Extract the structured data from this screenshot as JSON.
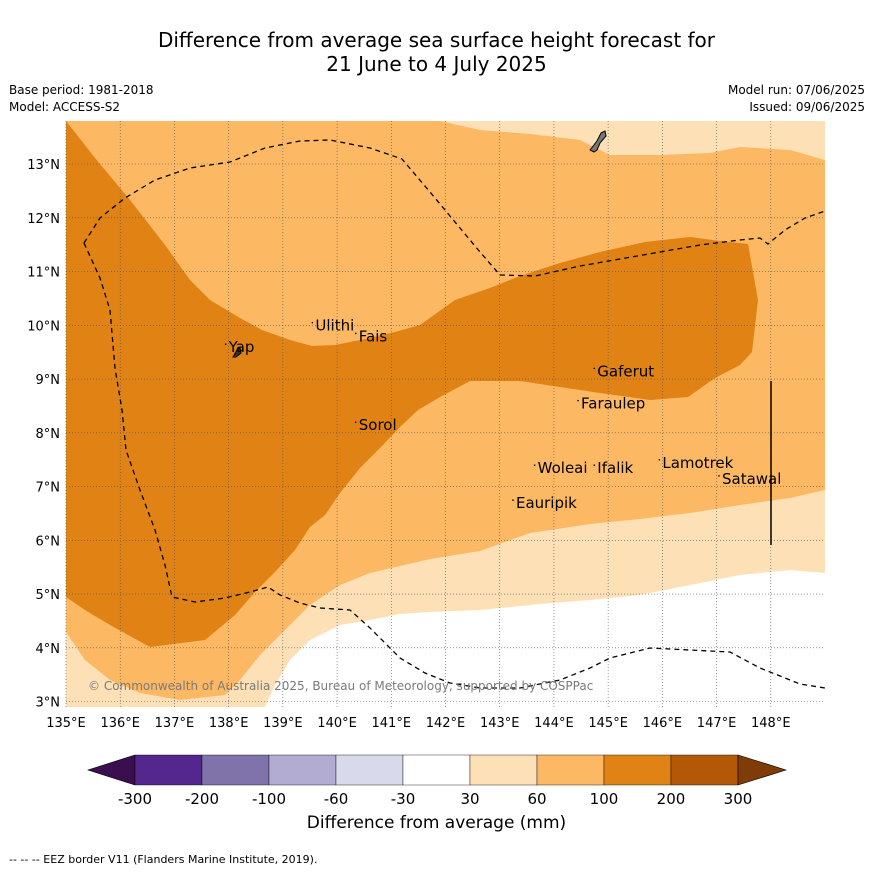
{
  "title": {
    "line1": "Difference from average sea surface height forecast for",
    "line2": "21 June to 4 July 2025"
  },
  "meta": {
    "base_period": "Base period: 1981-2018",
    "model": "Model: ACCESS-S2",
    "model_run": "Model run: 07/06/2025",
    "issued": "Issued: 09/06/2025"
  },
  "axes": {
    "x_ticks": [
      "135°E",
      "136°E",
      "137°E",
      "138°E",
      "139°E",
      "140°E",
      "141°E",
      "142°E",
      "143°E",
      "144°E",
      "145°E",
      "146°E",
      "147°E",
      "148°E"
    ],
    "y_ticks": [
      "3°N",
      "4°N",
      "5°N",
      "6°N",
      "7°N",
      "8°N",
      "9°N",
      "10°N",
      "11°N",
      "12°N",
      "13°N"
    ],
    "lon_range": [
      135,
      149
    ],
    "lat_range": [
      2.9,
      13.8
    ]
  },
  "places": [
    {
      "name": "Yap",
      "lon": 138.0,
      "lat": 9.5
    },
    {
      "name": "Ulithi",
      "lon": 139.6,
      "lat": 9.9
    },
    {
      "name": "Fais",
      "lon": 140.4,
      "lat": 9.7
    },
    {
      "name": "Sorol",
      "lon": 140.4,
      "lat": 8.05
    },
    {
      "name": "Gaferut",
      "lon": 144.8,
      "lat": 9.05
    },
    {
      "name": "Faraulep",
      "lon": 144.5,
      "lat": 8.45
    },
    {
      "name": "Woleai",
      "lon": 143.7,
      "lat": 7.25
    },
    {
      "name": "Ifalik",
      "lon": 144.8,
      "lat": 7.25
    },
    {
      "name": "Lamotrek",
      "lon": 146.0,
      "lat": 7.35
    },
    {
      "name": "Satawal",
      "lon": 147.1,
      "lat": 7.05
    },
    {
      "name": "Eauripik",
      "lon": 143.3,
      "lat": 6.6
    }
  ],
  "watermark": "© Commonwealth of Australia 2025, Bureau of Meteorology, supported by COSPPac",
  "colorbar": {
    "label": "Difference from average (mm)",
    "ticks": [
      "-300",
      "-200",
      "-100",
      "-60",
      "-30",
      "30",
      "60",
      "100",
      "200",
      "300"
    ],
    "colors": [
      "#3b0f4f",
      "#54278f",
      "#8073ac",
      "#b2abd2",
      "#d8daeb",
      "#ffffff",
      "#fee0b6",
      "#fdb863",
      "#e08214",
      "#b35806",
      "#7f3b08"
    ]
  },
  "legend_note": "-- -- -- EEZ border V11 (Flanders Marine Institute, 2019)."
}
